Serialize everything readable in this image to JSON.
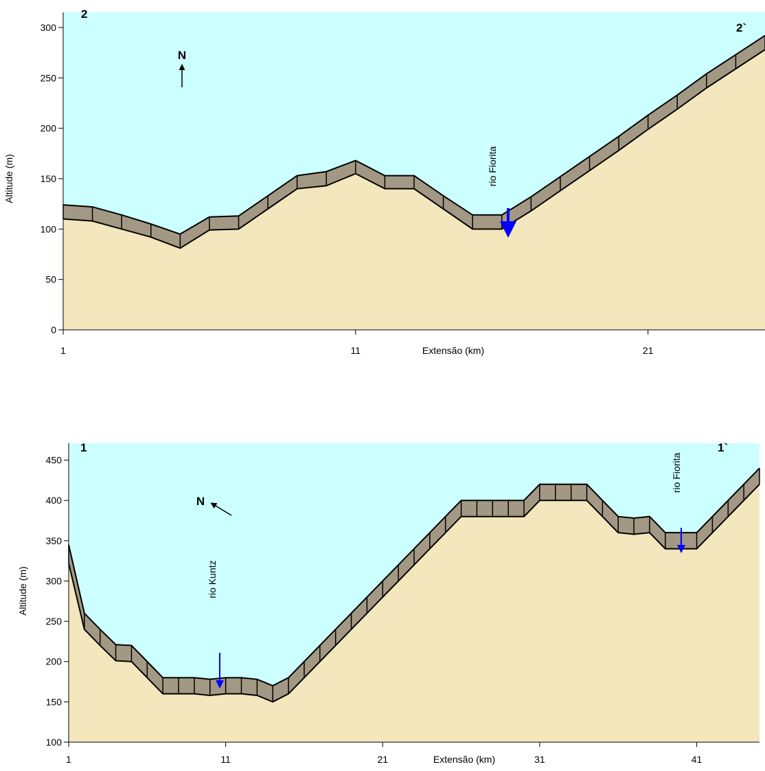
{
  "chart_data": [
    {
      "type": "profile",
      "xlabel": "Extensão (km)",
      "ylabel": "Altitude (m)",
      "x": [
        1,
        2,
        3,
        4,
        5,
        6,
        7,
        8,
        9,
        10,
        11,
        12,
        13,
        14,
        15,
        16,
        17,
        18,
        19,
        20,
        21,
        22,
        23,
        24,
        25
      ],
      "series": [
        {
          "color": "#a39884",
          "values": [
            124,
            122,
            114,
            105,
            95,
            112,
            113,
            133,
            153,
            157,
            168,
            153,
            153,
            133,
            114,
            114,
            132,
            152,
            172,
            192,
            213,
            233,
            254,
            273,
            292
          ]
        },
        {
          "color": "#f4e6bd",
          "values": [
            110,
            108,
            100,
            92,
            81,
            99,
            100,
            120,
            140,
            143,
            155,
            140,
            140,
            120,
            100,
            100,
            118,
            138,
            158,
            178,
            199,
            219,
            240,
            259,
            278
          ]
        }
      ],
      "xlim": [
        1,
        25
      ],
      "ylim": [
        0,
        315
      ],
      "xticks": [
        1,
        11,
        21
      ],
      "yticks": [
        0,
        50,
        100,
        150,
        200,
        250,
        300
      ],
      "background": "#ccffff",
      "annotations": [
        "2",
        "2`",
        "N",
        "rio Fiorita"
      ]
    },
    {
      "type": "profile",
      "xlabel": "Extensão (km)",
      "ylabel": "Altitude (m)",
      "x": [
        1,
        2,
        3,
        4,
        5,
        6,
        7,
        8,
        9,
        10,
        11,
        12,
        13,
        14,
        15,
        16,
        17,
        18,
        19,
        20,
        21,
        22,
        23,
        24,
        25,
        26,
        27,
        28,
        29,
        30,
        31,
        32,
        33,
        34,
        35,
        36,
        37,
        38,
        39,
        40,
        41,
        42,
        43,
        44,
        45
      ],
      "series": [
        {
          "color": "#a39884",
          "values": [
            345,
            260,
            240,
            221,
            220,
            200,
            180,
            180,
            180,
            178,
            180,
            180,
            178,
            170,
            180,
            200,
            220,
            240,
            260,
            280,
            300,
            320,
            340,
            360,
            380,
            400,
            400,
            400,
            400,
            400,
            420,
            420,
            420,
            420,
            400,
            380,
            378,
            380,
            360,
            360,
            360,
            380,
            400,
            420,
            440
          ]
        },
        {
          "color": "#f4e6bd",
          "values": [
            322,
            240,
            220,
            201,
            200,
            180,
            160,
            160,
            160,
            158,
            160,
            160,
            158,
            150,
            160,
            180,
            200,
            220,
            240,
            260,
            280,
            300,
            320,
            340,
            360,
            380,
            380,
            380,
            380,
            380,
            400,
            400,
            400,
            400,
            380,
            360,
            358,
            360,
            340,
            340,
            340,
            360,
            380,
            400,
            420
          ]
        }
      ],
      "xlim": [
        1,
        45
      ],
      "ylim": [
        100,
        471
      ],
      "xticks": [
        1,
        11,
        21,
        31,
        41
      ],
      "yticks": [
        100,
        150,
        200,
        250,
        300,
        350,
        400,
        450
      ],
      "background": "#ccffff",
      "annotations": [
        "1",
        "1`",
        "N",
        "rio Kuntz",
        "rio Fiorita"
      ]
    }
  ]
}
